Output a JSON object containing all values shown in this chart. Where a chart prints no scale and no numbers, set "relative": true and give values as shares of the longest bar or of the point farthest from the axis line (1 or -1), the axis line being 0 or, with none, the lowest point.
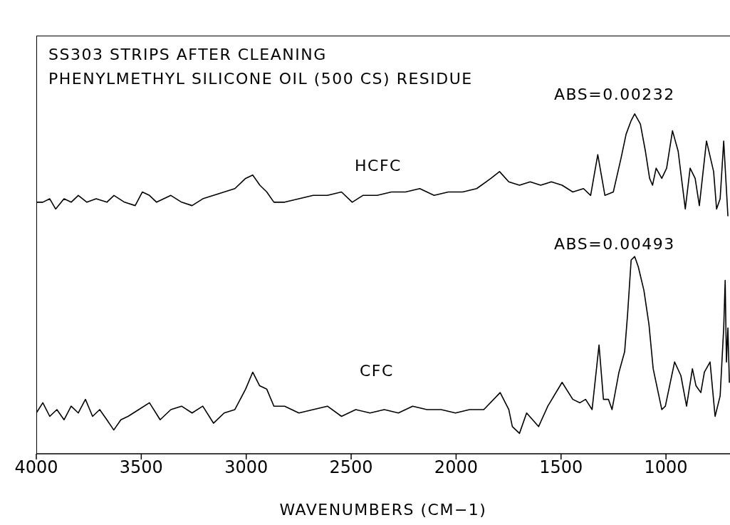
{
  "chart_data": {
    "type": "line",
    "title": "SS303 STRIPS AFTER CLEANING",
    "subtitle": "PHENYLMETHYL SILICONE OIL (500 CS) RESIDUE",
    "xlabel": "WAVENUMBERS (CM−1)",
    "relative": true,
    "xlim": [
      4000,
      695
    ],
    "xticks": [
      4000,
      3500,
      3000,
      2500,
      2000,
      1500,
      1000
    ],
    "grid": false,
    "legend": false,
    "marker": "none",
    "line_style": "solid",
    "annotations": [
      "ABS=0.00232",
      "ABS=0.00493"
    ],
    "series": [
      {
        "name": "HCFC",
        "color": "#000000",
        "x": [
          4000,
          3969,
          3936,
          3908,
          3868,
          3834,
          3800,
          3759,
          3715,
          3664,
          3630,
          3580,
          3529,
          3495,
          3461,
          3427,
          3359,
          3308,
          3258,
          3207,
          3156,
          3105,
          3054,
          3003,
          2969,
          2935,
          2902,
          2868,
          2817,
          2749,
          2681,
          2613,
          2546,
          2495,
          2444,
          2376,
          2308,
          2241,
          2173,
          2105,
          2037,
          1969,
          1902,
          1834,
          1793,
          1749,
          1698,
          1647,
          1597,
          1546,
          1495,
          1444,
          1393,
          1359,
          1325,
          1291,
          1251,
          1214,
          1190,
          1166,
          1149,
          1122,
          1098,
          1078,
          1064,
          1047,
          1020,
          997,
          969,
          942,
          908,
          885,
          861,
          841,
          807,
          773,
          759,
          742,
          725,
          705
        ],
        "values": [
          0.74,
          0.74,
          0.75,
          0.72,
          0.75,
          0.74,
          0.76,
          0.74,
          0.75,
          0.74,
          0.76,
          0.74,
          0.73,
          0.77,
          0.76,
          0.74,
          0.76,
          0.74,
          0.73,
          0.75,
          0.76,
          0.77,
          0.78,
          0.81,
          0.82,
          0.79,
          0.77,
          0.74,
          0.74,
          0.75,
          0.76,
          0.76,
          0.77,
          0.74,
          0.76,
          0.76,
          0.77,
          0.77,
          0.78,
          0.76,
          0.77,
          0.77,
          0.78,
          0.81,
          0.83,
          0.8,
          0.79,
          0.8,
          0.79,
          0.8,
          0.79,
          0.77,
          0.78,
          0.76,
          0.88,
          0.76,
          0.77,
          0.87,
          0.94,
          0.98,
          1,
          0.97,
          0.89,
          0.81,
          0.79,
          0.84,
          0.81,
          0.84,
          0.95,
          0.89,
          0.72,
          0.84,
          0.81,
          0.73,
          0.92,
          0.83,
          0.72,
          0.75,
          0.92,
          0.7
        ]
      },
      {
        "name": "CFC",
        "color": "#000000",
        "x": [
          4000,
          3969,
          3936,
          3902,
          3868,
          3834,
          3800,
          3766,
          3732,
          3698,
          3664,
          3631,
          3597,
          3563,
          3512,
          3461,
          3410,
          3359,
          3308,
          3258,
          3207,
          3156,
          3105,
          3054,
          3003,
          2969,
          2936,
          2902,
          2868,
          2817,
          2749,
          2681,
          2613,
          2546,
          2478,
          2410,
          2342,
          2275,
          2207,
          2139,
          2071,
          2003,
          1936,
          1868,
          1790,
          1749,
          1732,
          1698,
          1664,
          1607,
          1563,
          1495,
          1444,
          1410,
          1383,
          1352,
          1319,
          1298,
          1274,
          1257,
          1224,
          1197,
          1183,
          1166,
          1149,
          1132,
          1105,
          1081,
          1061,
          1020,
          1003,
          959,
          929,
          902,
          874,
          857,
          834,
          817,
          790,
          766,
          742,
          725,
          718,
          712,
          705,
          698
        ],
        "values": [
          0.12,
          0.15,
          0.11,
          0.13,
          0.1,
          0.14,
          0.12,
          0.16,
          0.11,
          0.13,
          0.1,
          0.07,
          0.1,
          0.11,
          0.13,
          0.15,
          0.1,
          0.13,
          0.14,
          0.12,
          0.14,
          0.09,
          0.12,
          0.13,
          0.19,
          0.24,
          0.2,
          0.19,
          0.14,
          0.14,
          0.12,
          0.13,
          0.14,
          0.11,
          0.13,
          0.12,
          0.13,
          0.12,
          0.14,
          0.13,
          0.13,
          0.12,
          0.13,
          0.13,
          0.18,
          0.13,
          0.08,
          0.06,
          0.12,
          0.08,
          0.14,
          0.21,
          0.16,
          0.15,
          0.16,
          0.13,
          0.32,
          0.16,
          0.16,
          0.13,
          0.24,
          0.3,
          0.41,
          0.57,
          0.58,
          0.55,
          0.48,
          0.38,
          0.25,
          0.13,
          0.14,
          0.27,
          0.23,
          0.14,
          0.25,
          0.2,
          0.18,
          0.24,
          0.27,
          0.11,
          0.17,
          0.37,
          0.51,
          0.27,
          0.37,
          0.21
        ]
      }
    ]
  }
}
